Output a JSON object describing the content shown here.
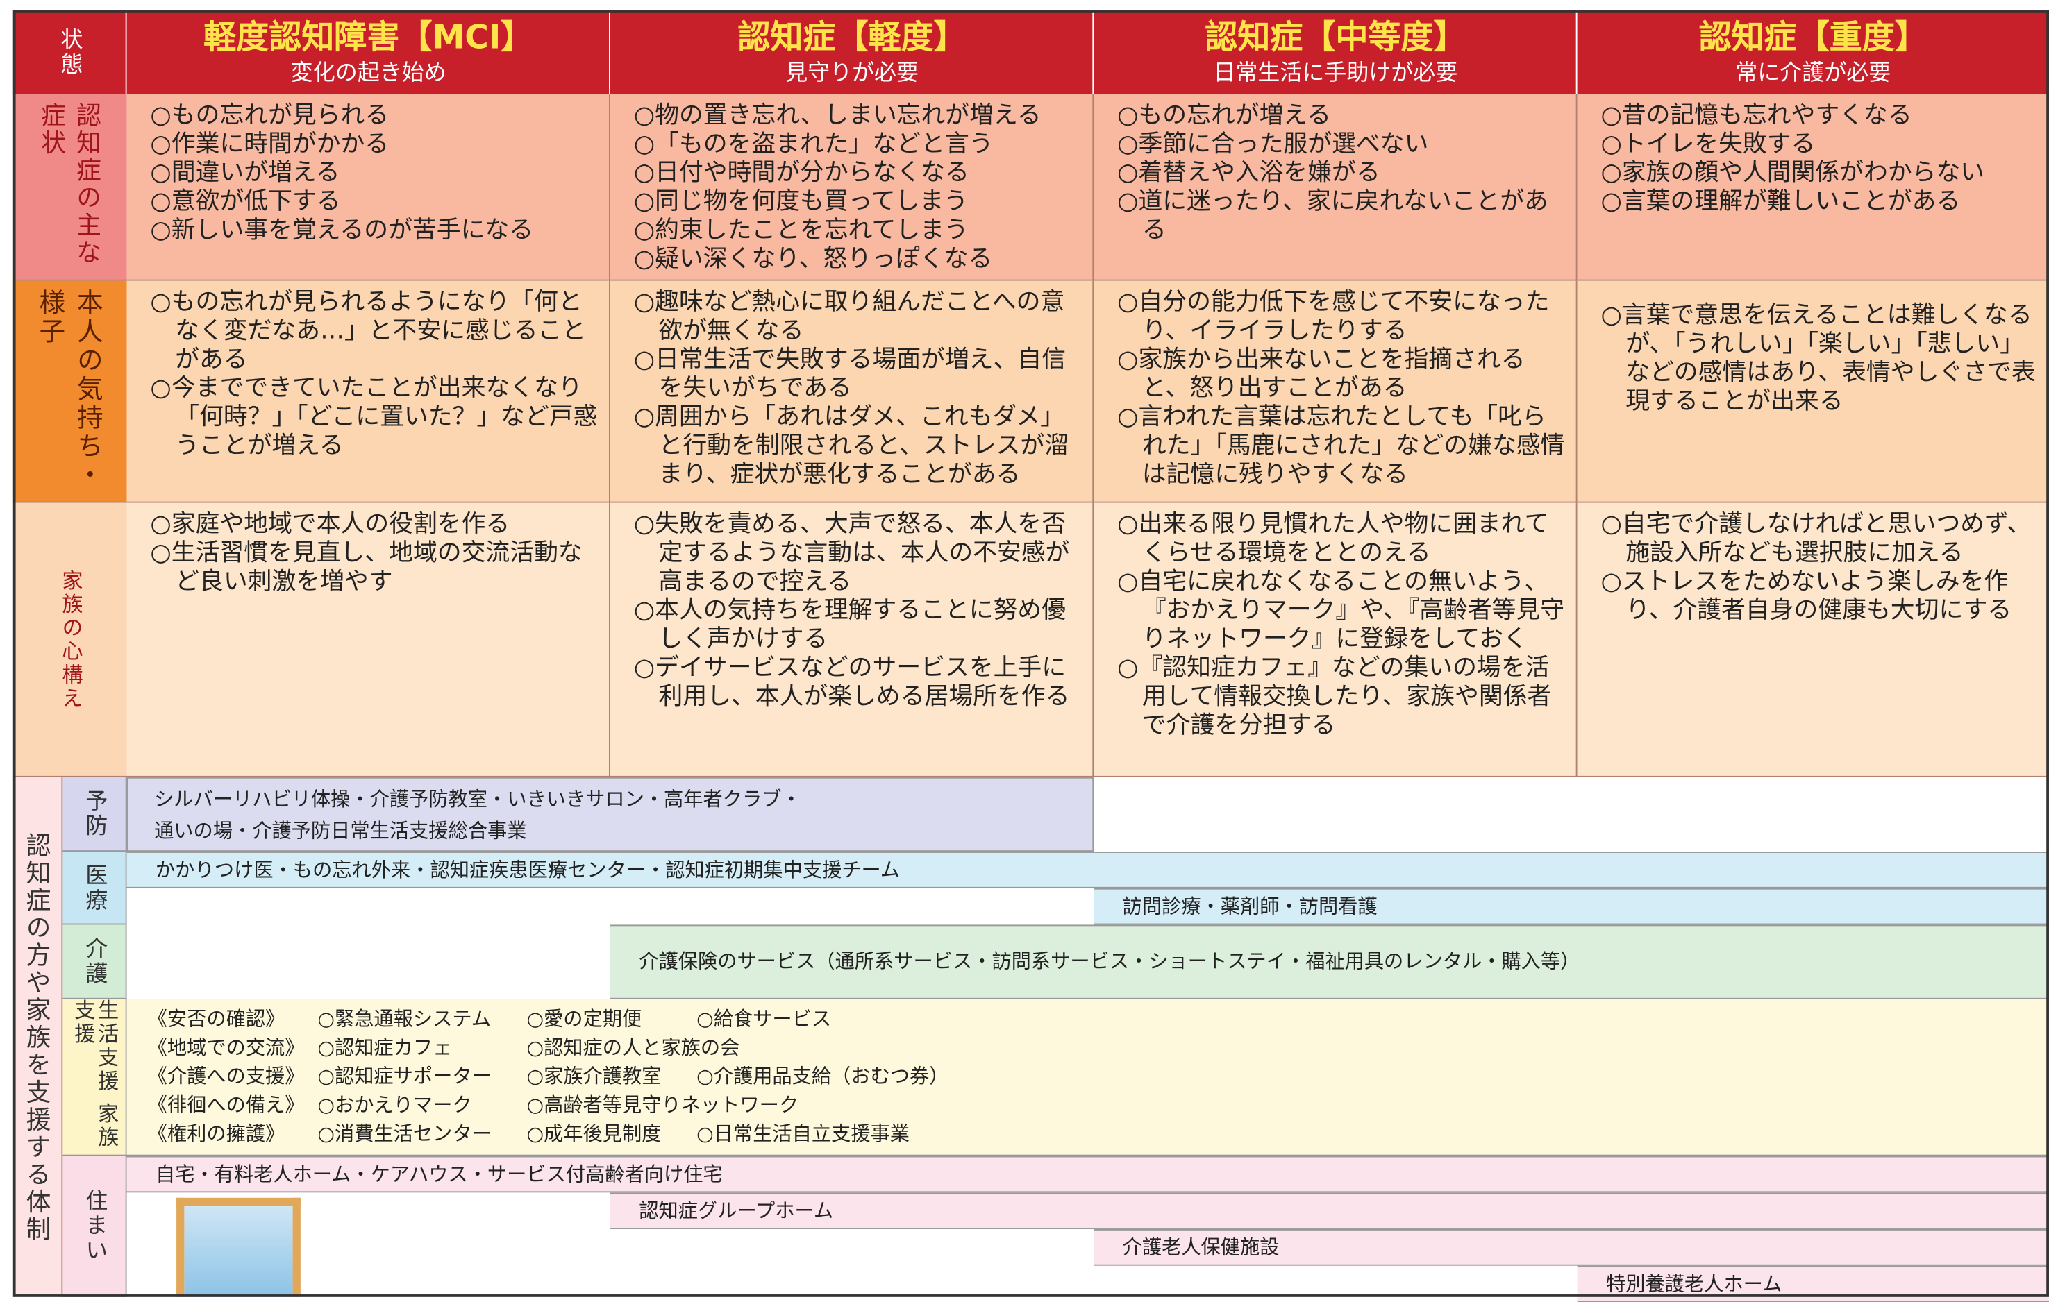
{
  "header": {
    "state_label": "状態",
    "columns": [
      {
        "title": "軽度認知障害【MCI】",
        "subtitle": "変化の起き始め"
      },
      {
        "title": "認知症【軽度】",
        "subtitle": "見守りが必要"
      },
      {
        "title": "認知症【中等度】",
        "subtitle": "日常生活に手助けが必要"
      },
      {
        "title": "認知症【重度】",
        "subtitle": "常に介護が必要"
      }
    ]
  },
  "rows": [
    {
      "label": "認知症の主な症状",
      "cells": [
        [
          "○もの忘れが見られる",
          "○作業に時間がかかる",
          "○間違いが増える",
          "○意欲が低下する",
          "○新しい事を覚えるのが苦手になる"
        ],
        [
          "○物の置き忘れ、しまい忘れが増える",
          "○「ものを盗まれた」などと言う",
          "○日付や時間が分からなくなる",
          "○同じ物を何度も買ってしまう",
          "○約束したことを忘れてしまう",
          "○疑い深くなり、怒りっぽくなる"
        ],
        [
          "○もの忘れが増える",
          "○季節に合った服が選べない",
          "○着替えや入浴を嫌がる",
          "○道に迷ったり、家に戻れないことがある"
        ],
        [
          "○昔の記憶も忘れやすくなる",
          "○トイレを失敗する",
          "○家族の顔や人間関係がわからない",
          "○言葉の理解が難しいことがある"
        ]
      ]
    },
    {
      "label": "本人の気持ち・様子",
      "cells": [
        [
          "○もの忘れが見られるようになり「何となく変だなあ…」と不安に感じることがある",
          "○今までできていたことが出来なくなり「何時？」「どこに置いた？」など戸惑うことが増える"
        ],
        [
          "○趣味など熱心に取り組んだことへの意欲が無くなる",
          "○日常生活で失敗する場面が増え、自信を失いがちである",
          "○周囲から「あれはダメ、これもダメ」と行動を制限されると、ストレスが溜まり、症状が悪化することがある"
        ],
        [
          "○自分の能力低下を感じて不安になったり、イライラしたりする",
          "○家族から出来ないことを指摘されると、怒り出すことがある",
          "○言われた言葉は忘れたとしても「叱られた」「馬鹿にされた」などの嫌な感情は記憶に残りやすくなる"
        ],
        [
          "○言葉で意思を伝えることは難しくなるが、「うれしい」「楽しい」「悲しい」などの感情はあり、表情やしぐさで表現することが出来る"
        ]
      ]
    },
    {
      "label": "家族の心構え",
      "cells": [
        [
          "○家庭や地域で本人の役割を作る",
          "○生活習慣を見直し、地域の交流活動など良い刺激を増やす"
        ],
        [
          "○失敗を責める、大声で怒る、本人を否定するような言動は、本人の不安感が高まるので控える",
          "○本人の気持ちを理解することに努め優しく声かけする",
          "○デイサービスなどのサービスを上手に利用し、本人が楽しめる居場所を作る"
        ],
        [
          "○出来る限り見慣れた人や物に囲まれてくらせる環境をととのえる",
          "○自宅に戻れなくなることの無いよう、『おかえりマーク』や、『高齢者等見守りネットワーク』に登録をしておく",
          "○『認知症カフェ』などの集いの場を活用して情報交換したり、家族や関係者で介護を分担する"
        ],
        [
          "○自宅で介護しなければと思いつめず、施設入所なども選択肢に加える",
          "○ストレスをためないよう楽しみを作り、介護者自身の健康も大切にする"
        ]
      ]
    }
  ],
  "support": {
    "label": "認知症の方や家族を支援する体制",
    "prevention": {
      "label": "予防",
      "text": [
        "シルバーリハビリ体操・介護予防教室・いきいきサロン・高年者クラブ・",
        "通いの場・介護予防日常生活支援総合事業"
      ]
    },
    "medical": {
      "label": "医療",
      "bars": [
        "かかりつけ医・もの忘れ外来・認知症疾患医療センター・認知症初期集中支援チーム",
        "訪問診療・薬剤師・訪問看護"
      ]
    },
    "care": {
      "label": "介護",
      "bars": [
        "介護保険のサービス（通所系サービス・訪問系サービス・ショートステイ・福祉用具のレンタル・購入等）"
      ]
    },
    "life": {
      "label": "生活支援 家族支援",
      "rows": [
        [
          "《安否の確認》",
          "○緊急通報システム",
          "○愛の定期便",
          "○給食サービス"
        ],
        [
          "《地域での交流》",
          "○認知症カフェ",
          "○認知症の人と家族の会"
        ],
        [
          "《介護への支援》",
          "○認知症サポーター",
          "○家族介護教室",
          "○介護用品支給（おむつ券）"
        ],
        [
          "《徘徊への備え》",
          "○おかえりマーク",
          "○高齢者等見守りネットワーク"
        ],
        [
          "《権利の擁護》",
          "○消費生活センター",
          "○成年後見制度",
          "○日常生活自立支援事業"
        ]
      ]
    },
    "housing": {
      "label": "住まい",
      "bars": [
        "自宅・有料老人ホーム・ケアハウス・サービス付高齢者向け住宅",
        "認知症グループホーム",
        "介護老人保健施設",
        "特別養護老人ホーム"
      ]
    }
  }
}
